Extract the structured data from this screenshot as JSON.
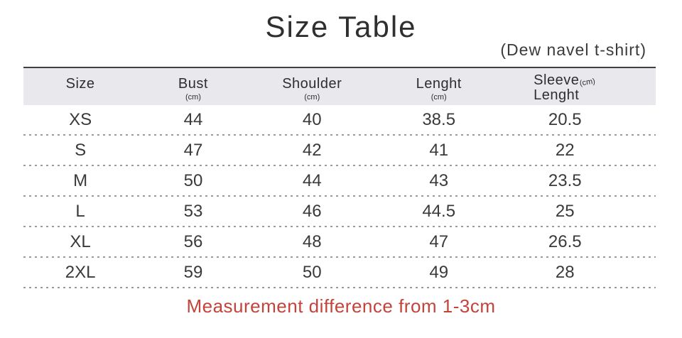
{
  "title": "Size Table",
  "subtitle": "(Dew navel t-shirt)",
  "table": {
    "columns": [
      {
        "label": "Size",
        "unit": ""
      },
      {
        "label": "Bust",
        "unit": "(cm)"
      },
      {
        "label": "Shoulder",
        "unit": "(cm)"
      },
      {
        "label": "Lenght",
        "unit": "(cm)"
      },
      {
        "label": "Sleeve Lenght",
        "label_line1": "Sleeve",
        "label_line2": "Lenght",
        "unit": "(cm)"
      }
    ],
    "rows": [
      [
        "XS",
        "44",
        "40",
        "38.5",
        "20.5"
      ],
      [
        "S",
        "47",
        "42",
        "41",
        "22"
      ],
      [
        "M",
        "50",
        "44",
        "43",
        "23.5"
      ],
      [
        "L",
        "53",
        "46",
        "44.5",
        "25"
      ],
      [
        "XL",
        "56",
        "48",
        "47",
        "26.5"
      ],
      [
        "2XL",
        "59",
        "50",
        "49",
        "28"
      ]
    ]
  },
  "note": {
    "text": "Measurement difference from 1-3cm"
  },
  "colors": {
    "header_bg": "#e9e9ed",
    "top_border": "#3f3f3f",
    "text": "#333333",
    "dotted": "#9a9a9a",
    "note": "#c2443a"
  }
}
